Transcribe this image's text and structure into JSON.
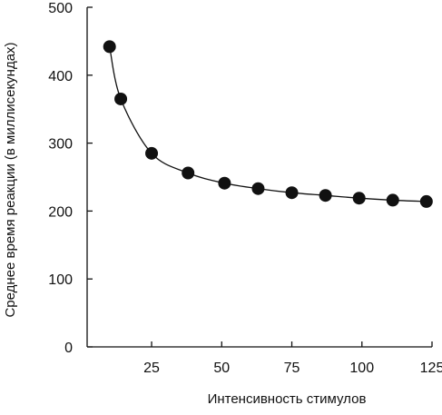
{
  "chart_data": {
    "type": "scatter",
    "title": "",
    "xlabel": "Интенсивность стимулов",
    "ylabel": "Среднее время реакции (в миллисекундах)",
    "xlim": [
      2,
      125
    ],
    "ylim": [
      0,
      500
    ],
    "x_ticks": [
      25,
      50,
      75,
      100,
      125
    ],
    "y_ticks": [
      0,
      100,
      200,
      300,
      400,
      500
    ],
    "x_tick_labels": [
      "25",
      "50",
      "75",
      "100",
      "125"
    ],
    "y_tick_labels": [
      "0",
      "100",
      "200",
      "300",
      "400",
      "500"
    ],
    "grid": false,
    "legend": "none",
    "series": [
      {
        "points": [
          {
            "x": 10,
            "y": 442
          },
          {
            "x": 14,
            "y": 365
          },
          {
            "x": 25,
            "y": 285
          },
          {
            "x": 38,
            "y": 256
          },
          {
            "x": 51,
            "y": 241
          },
          {
            "x": 63,
            "y": 233
          },
          {
            "x": 75,
            "y": 227
          },
          {
            "x": 87,
            "y": 223
          },
          {
            "x": 99,
            "y": 219
          },
          {
            "x": 111,
            "y": 216
          },
          {
            "x": 123,
            "y": 214
          }
        ]
      }
    ],
    "fit_curve": true,
    "colors": {
      "ink": "#111111",
      "background": "#ffffff"
    }
  }
}
